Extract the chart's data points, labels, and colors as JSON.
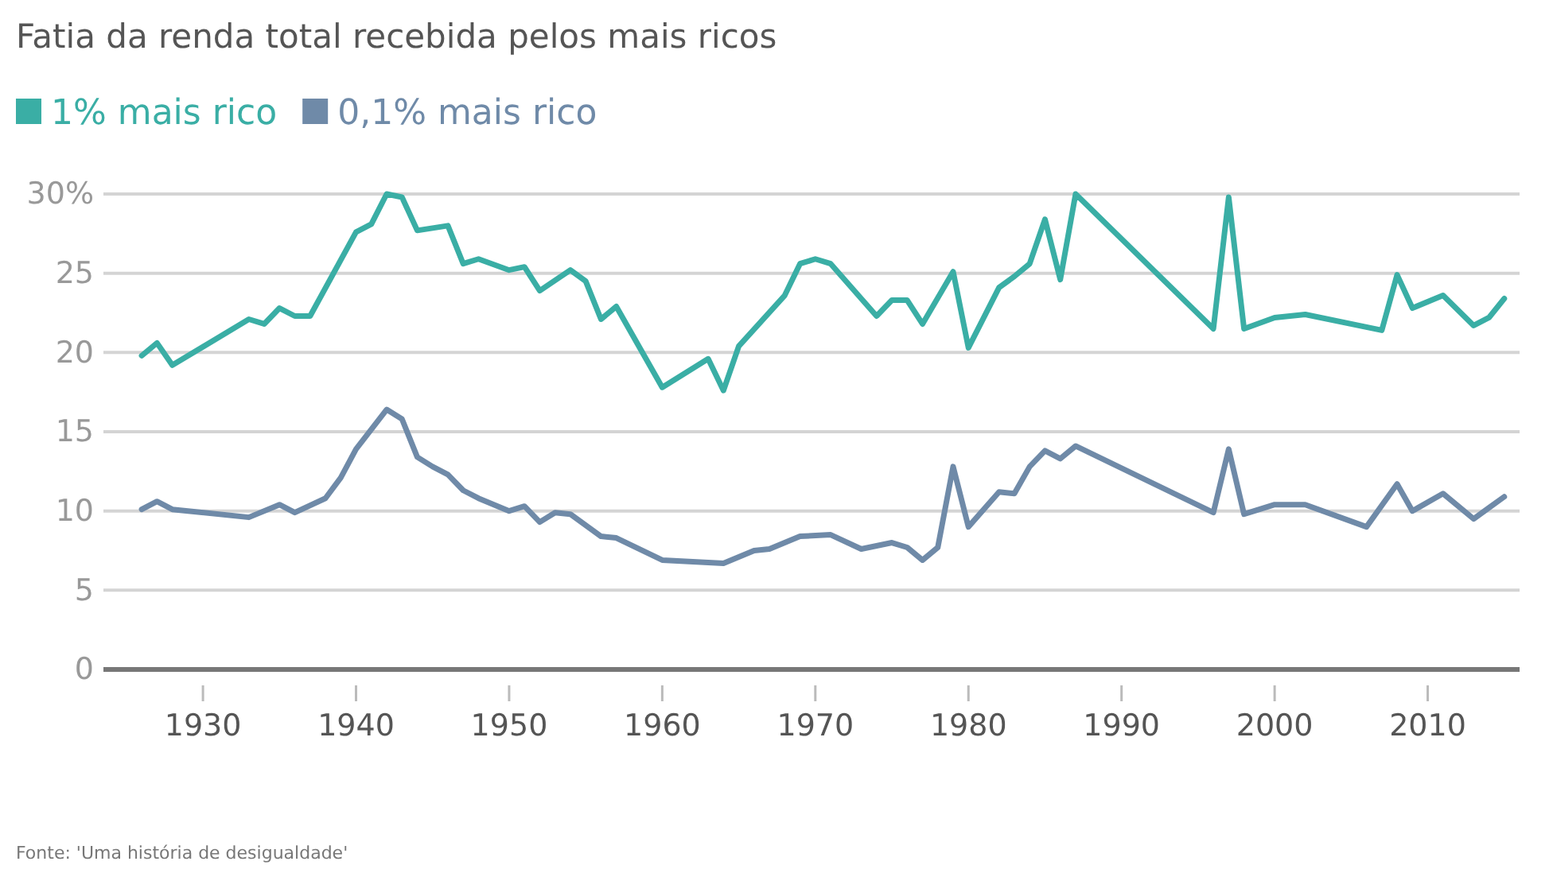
{
  "chart_data": {
    "type": "line",
    "title": "Fatia da renda total recebida pelos mais ricos",
    "xlim": [
      1923.5,
      2016
    ],
    "xticks": [
      1930,
      1940,
      1950,
      1960,
      1970,
      1980,
      1990,
      2000,
      2010
    ],
    "ylim": [
      0,
      30
    ],
    "yticks": [
      0,
      5,
      10,
      15,
      20,
      25,
      {
        "value": 30,
        "label": "30%"
      }
    ],
    "grid": "y",
    "legend": "top left",
    "line_style": "solid",
    "marker": "none",
    "series": [
      {
        "name": "1% mais rico",
        "color": "#3aaea5",
        "x": [
          1926,
          1927,
          1928,
          1933,
          1934,
          1935,
          1936,
          1937,
          1940,
          1941,
          1942,
          1943,
          1944,
          1946,
          1947,
          1948,
          1950,
          1951,
          1952,
          1954,
          1955,
          1956,
          1957,
          1960,
          1963,
          1964,
          1965,
          1968,
          1969,
          1970,
          1971,
          1974,
          1975,
          1976,
          1977,
          1979,
          1980,
          1982,
          1983,
          1984,
          1985,
          1986,
          1987,
          1996,
          1997,
          1998,
          2000,
          2002,
          2007,
          2008,
          2009,
          2011,
          2013,
          2014,
          2015
        ],
        "values": [
          19.8,
          20.6,
          19.2,
          22.1,
          21.8,
          22.8,
          22.3,
          22.3,
          27.6,
          28.1,
          30.0,
          29.8,
          27.7,
          28.0,
          25.6,
          25.9,
          25.2,
          25.4,
          23.9,
          25.2,
          24.5,
          22.1,
          22.9,
          17.8,
          19.6,
          17.6,
          20.4,
          23.6,
          25.6,
          25.9,
          25.6,
          22.3,
          23.3,
          23.3,
          21.8,
          25.1,
          20.3,
          24.1,
          24.8,
          25.6,
          28.4,
          24.6,
          30.0,
          21.5,
          29.8,
          21.5,
          22.2,
          22.4,
          21.4,
          24.9,
          22.8,
          23.6,
          21.7,
          22.2,
          23.4
        ]
      },
      {
        "name": "0,1% mais rico",
        "color": "#6f8aa8",
        "x": [
          1926,
          1927,
          1928,
          1933,
          1935,
          1936,
          1938,
          1939,
          1940,
          1942,
          1943,
          1944,
          1945,
          1946,
          1947,
          1948,
          1950,
          1951,
          1952,
          1953,
          1954,
          1956,
          1957,
          1960,
          1964,
          1966,
          1967,
          1969,
          1971,
          1973,
          1975,
          1976,
          1977,
          1978,
          1979,
          1980,
          1982,
          1983,
          1984,
          1985,
          1986,
          1987,
          1996,
          1997,
          1998,
          2000,
          2002,
          2006,
          2008,
          2009,
          2011,
          2013,
          2014,
          2015
        ],
        "values": [
          10.1,
          10.6,
          10.1,
          9.6,
          10.4,
          9.9,
          10.8,
          12.1,
          13.9,
          16.4,
          15.8,
          13.4,
          12.8,
          12.3,
          11.3,
          10.8,
          10.0,
          10.3,
          9.3,
          9.9,
          9.8,
          8.4,
          8.3,
          6.9,
          6.7,
          7.5,
          7.6,
          8.4,
          8.5,
          7.6,
          8.0,
          7.7,
          6.9,
          7.7,
          12.8,
          9.0,
          11.2,
          11.1,
          12.8,
          13.8,
          13.3,
          14.1,
          9.9,
          13.9,
          9.8,
          10.4,
          10.4,
          9.0,
          11.7,
          10.0,
          11.1,
          9.5,
          10.2,
          10.9
        ]
      }
    ],
    "annotations": [
      "Fonte: 'Uma história de desigualdade'"
    ]
  }
}
